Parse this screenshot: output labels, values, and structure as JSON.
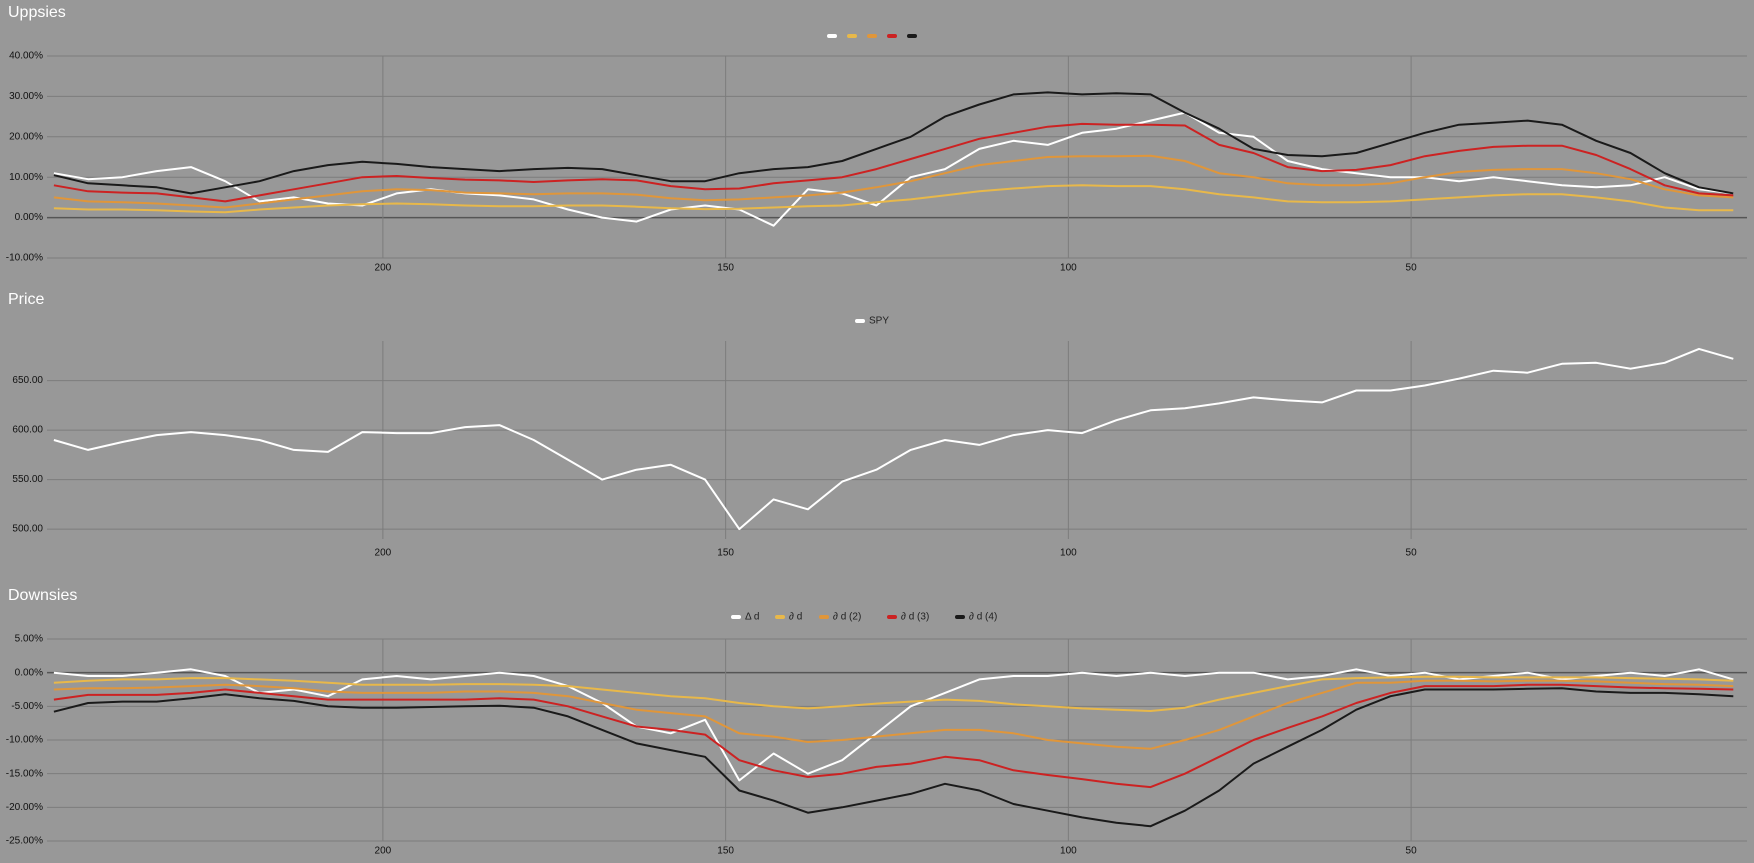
{
  "chart_data": [
    {
      "type": "line",
      "title": "Uppsies",
      "x": [
        248,
        243,
        238,
        233,
        228,
        223,
        218,
        213,
        208,
        203,
        198,
        193,
        188,
        183,
        178,
        173,
        168,
        163,
        158,
        153,
        148,
        143,
        138,
        133,
        128,
        123,
        118,
        113,
        108,
        103,
        98,
        93,
        88,
        83,
        78,
        73,
        68,
        63,
        58,
        53,
        48,
        43,
        38,
        33,
        28,
        23,
        18,
        13,
        8,
        3
      ],
      "xlim": [
        249,
        1
      ],
      "xticks": [
        200,
        150,
        100,
        50
      ],
      "ylim": [
        -10,
        40
      ],
      "yticks": [
        {
          "value": -10,
          "label": "-10.00%"
        },
        {
          "value": 0,
          "label": "0.00%"
        },
        {
          "value": 10,
          "label": "10.00%"
        },
        {
          "value": 20,
          "label": "20.00%"
        },
        {
          "value": 30,
          "label": "30.00%"
        },
        {
          "value": 40,
          "label": "40.00%"
        }
      ],
      "grid": true,
      "series": [
        {
          "color": "#ffffff",
          "values": [
            11,
            9.5,
            10,
            11.5,
            12.5,
            9,
            4,
            5,
            3.5,
            3,
            6,
            7,
            6,
            5.5,
            4.5,
            2,
            0,
            -1,
            2,
            3,
            2,
            -2,
            7,
            6,
            3,
            10,
            12,
            17,
            19,
            18,
            21,
            22,
            24,
            26,
            21,
            20,
            14,
            12,
            11,
            10,
            10,
            9,
            10,
            9,
            8,
            7.5,
            8,
            10,
            7,
            6
          ]
        },
        {
          "color": "#e8b84a",
          "values": [
            2.3,
            2,
            2,
            1.8,
            1.5,
            1.3,
            2,
            2.5,
            3,
            3.3,
            3.5,
            3.3,
            3,
            2.8,
            2.8,
            3,
            3,
            2.7,
            2.3,
            2.1,
            2.2,
            2.5,
            2.8,
            3,
            3.8,
            4.5,
            5.5,
            6.5,
            7.2,
            7.8,
            8,
            7.8,
            7.8,
            7,
            5.8,
            5,
            4,
            3.8,
            3.8,
            4,
            4.5,
            5,
            5.5,
            5.8,
            5.8,
            5,
            4,
            2.5,
            1.8,
            1.8
          ]
        },
        {
          "color": "#e0963a",
          "values": [
            5,
            4,
            3.8,
            3.5,
            3,
            2.5,
            3.5,
            4.5,
            5.5,
            6.5,
            7,
            6.8,
            6.2,
            6,
            5.8,
            6,
            6,
            5.7,
            4.8,
            4.3,
            4.5,
            5,
            5.5,
            6.2,
            7.5,
            9,
            11,
            13,
            14,
            15,
            15.2,
            15.2,
            15.3,
            14,
            11,
            10,
            8.5,
            8,
            8,
            8.5,
            10,
            11.3,
            11.8,
            12,
            12,
            11,
            9.5,
            7,
            5.5,
            5
          ]
        },
        {
          "color": "#cc2222",
          "values": [
            8,
            6.5,
            6.2,
            6,
            5,
            4,
            5.5,
            7,
            8.5,
            10,
            10.3,
            9.8,
            9.4,
            9.2,
            8.8,
            9.2,
            9.5,
            9.2,
            7.8,
            7,
            7.2,
            8.5,
            9.2,
            10,
            12,
            14.5,
            17,
            19.5,
            21,
            22.5,
            23.2,
            23,
            23,
            22.8,
            18,
            16,
            12.5,
            11.5,
            11.8,
            13,
            15.2,
            16.5,
            17.5,
            17.8,
            17.8,
            15.5,
            12,
            8,
            6,
            5.5
          ]
        },
        {
          "color": "#1a1a1a",
          "values": [
            10.5,
            8.5,
            8,
            7.5,
            6,
            7.5,
            9,
            11.5,
            13,
            13.8,
            13.3,
            12.5,
            12,
            11.5,
            12,
            12.3,
            12,
            10.5,
            9,
            9,
            11,
            12,
            12.5,
            14,
            17,
            20,
            25,
            28,
            30.5,
            31,
            30.5,
            30.8,
            30.5,
            26,
            22,
            17,
            15.5,
            15.2,
            16,
            18.5,
            21,
            23,
            23.5,
            24,
            23,
            19,
            16,
            11,
            7.5,
            6
          ]
        }
      ]
    },
    {
      "type": "line",
      "title": "Price",
      "x": [
        248,
        243,
        238,
        233,
        228,
        223,
        218,
        213,
        208,
        203,
        198,
        193,
        188,
        183,
        178,
        173,
        168,
        163,
        158,
        153,
        148,
        143,
        138,
        133,
        128,
        123,
        118,
        113,
        108,
        103,
        98,
        93,
        88,
        83,
        78,
        73,
        68,
        63,
        58,
        53,
        48,
        43,
        38,
        33,
        28,
        23,
        18,
        13,
        8,
        3
      ],
      "xlim": [
        249,
        1
      ],
      "xticks": [
        200,
        150,
        100,
        50
      ],
      "ylim": [
        490,
        690
      ],
      "yticks": [
        {
          "value": 500,
          "label": "500.00"
        },
        {
          "value": 550,
          "label": "550.00"
        },
        {
          "value": 600,
          "label": "600.00"
        },
        {
          "value": 650,
          "label": "650.00"
        }
      ],
      "grid": true,
      "series": [
        {
          "name": "SPY",
          "color": "#ffffff",
          "values": [
            590,
            580,
            588,
            595,
            598,
            595,
            590,
            580,
            578,
            598,
            597,
            597,
            603,
            605,
            590,
            570,
            550,
            560,
            565,
            550,
            500,
            530,
            520,
            548,
            560,
            580,
            590,
            585,
            595,
            600,
            597,
            610,
            620,
            622,
            627,
            633,
            630,
            628,
            640,
            640,
            645,
            652,
            660,
            658,
            667,
            668,
            662,
            668,
            682,
            672
          ]
        }
      ]
    },
    {
      "type": "line",
      "title": "Downsies",
      "x": [
        248,
        243,
        238,
        233,
        228,
        223,
        218,
        213,
        208,
        203,
        198,
        193,
        188,
        183,
        178,
        173,
        168,
        163,
        158,
        153,
        148,
        143,
        138,
        133,
        128,
        123,
        118,
        113,
        108,
        103,
        98,
        93,
        88,
        83,
        78,
        73,
        68,
        63,
        58,
        53,
        48,
        43,
        38,
        33,
        28,
        23,
        18,
        13,
        8,
        3
      ],
      "xlim": [
        249,
        1
      ],
      "xticks": [
        200,
        150,
        100,
        50
      ],
      "ylim": [
        -25,
        5
      ],
      "yticks": [
        {
          "value": -25,
          "label": "-25.00%"
        },
        {
          "value": -20,
          "label": "-20.00%"
        },
        {
          "value": -15,
          "label": "-15.00%"
        },
        {
          "value": -10,
          "label": "-10.00%"
        },
        {
          "value": -5,
          "label": "-5.00%"
        },
        {
          "value": 0,
          "label": "0.00%"
        },
        {
          "value": 5,
          "label": "5.00%"
        }
      ],
      "grid": true,
      "series": [
        {
          "name": "Δ d",
          "color": "#ffffff",
          "values": [
            0,
            -0.5,
            -0.5,
            0,
            0.5,
            -0.5,
            -3,
            -2.5,
            -3.5,
            -1,
            -0.5,
            -1,
            -0.5,
            0,
            -0.5,
            -2,
            -4.5,
            -8,
            -9,
            -7,
            -16,
            -12,
            -15,
            -13,
            -9,
            -5,
            -3,
            -1,
            -0.5,
            -0.5,
            0,
            -0.5,
            0,
            -0.5,
            0,
            0,
            -1,
            -0.5,
            0.5,
            -0.5,
            0,
            -1,
            -0.5,
            0,
            -1,
            -0.5,
            0,
            -0.5,
            0.5,
            -1
          ]
        },
        {
          "name": "∂ d",
          "color": "#e8b84a",
          "values": [
            -1.5,
            -1.2,
            -1,
            -1,
            -0.8,
            -0.8,
            -1,
            -1.2,
            -1.5,
            -1.8,
            -1.8,
            -1.8,
            -1.7,
            -1.7,
            -1.8,
            -2,
            -2.5,
            -3,
            -3.5,
            -3.8,
            -4.5,
            -5,
            -5.3,
            -5,
            -4.6,
            -4.3,
            -4,
            -4.2,
            -4.7,
            -5,
            -5.3,
            -5.5,
            -5.7,
            -5.2,
            -4,
            -3,
            -2,
            -1,
            -0.8,
            -0.7,
            -0.6,
            -0.6,
            -0.7,
            -0.7,
            -0.7,
            -0.7,
            -0.8,
            -0.9,
            -1,
            -1.2
          ]
        },
        {
          "name": "∂ d (2)",
          "color": "#e0963a",
          "values": [
            -2.5,
            -2.3,
            -2.3,
            -2.2,
            -2,
            -1.8,
            -2,
            -2.3,
            -2.8,
            -3,
            -3,
            -3,
            -2.8,
            -2.8,
            -3,
            -3.5,
            -4.5,
            -5.5,
            -6,
            -6.5,
            -9,
            -9.5,
            -10.3,
            -10,
            -9.5,
            -9,
            -8.5,
            -8.5,
            -9,
            -10,
            -10.5,
            -11,
            -11.3,
            -10,
            -8.5,
            -6.5,
            -4.5,
            -3,
            -1.5,
            -1.5,
            -1.2,
            -1.2,
            -1.3,
            -1.2,
            -1.2,
            -1.3,
            -1.5,
            -1.7,
            -1.8,
            -2
          ]
        },
        {
          "name": "∂ d (3)",
          "color": "#cc2222",
          "values": [
            -4,
            -3.3,
            -3.3,
            -3.3,
            -3,
            -2.5,
            -3,
            -3.5,
            -4,
            -4,
            -4,
            -4,
            -4,
            -3.8,
            -4,
            -5,
            -6.5,
            -8,
            -8.5,
            -9.2,
            -13,
            -14.5,
            -15.5,
            -15,
            -14,
            -13.5,
            -12.5,
            -13,
            -14.5,
            -15.2,
            -15.8,
            -16.5,
            -17,
            -15,
            -12.5,
            -10,
            -8.2,
            -6.5,
            -4.5,
            -3,
            -2,
            -2,
            -2,
            -1.8,
            -1.8,
            -2,
            -2.2,
            -2.3,
            -2.4,
            -2.5
          ]
        },
        {
          "name": "∂ d (4)",
          "color": "#1a1a1a",
          "values": [
            -5.8,
            -4.5,
            -4.3,
            -4.3,
            -3.8,
            -3.2,
            -3.8,
            -4.2,
            -5,
            -5.2,
            -5.2,
            -5.1,
            -5,
            -4.9,
            -5.2,
            -6.5,
            -8.5,
            -10.5,
            -11.5,
            -12.5,
            -17.5,
            -19,
            -20.8,
            -20,
            -19,
            -18,
            -16.5,
            -17.5,
            -19.5,
            -20.5,
            -21.5,
            -22.3,
            -22.8,
            -20.5,
            -17.5,
            -13.5,
            -11,
            -8.5,
            -5.5,
            -3.5,
            -2.5,
            -2.5,
            -2.5,
            -2.4,
            -2.3,
            -2.8,
            -3,
            -3,
            -3.2,
            -3.5
          ]
        }
      ]
    }
  ]
}
